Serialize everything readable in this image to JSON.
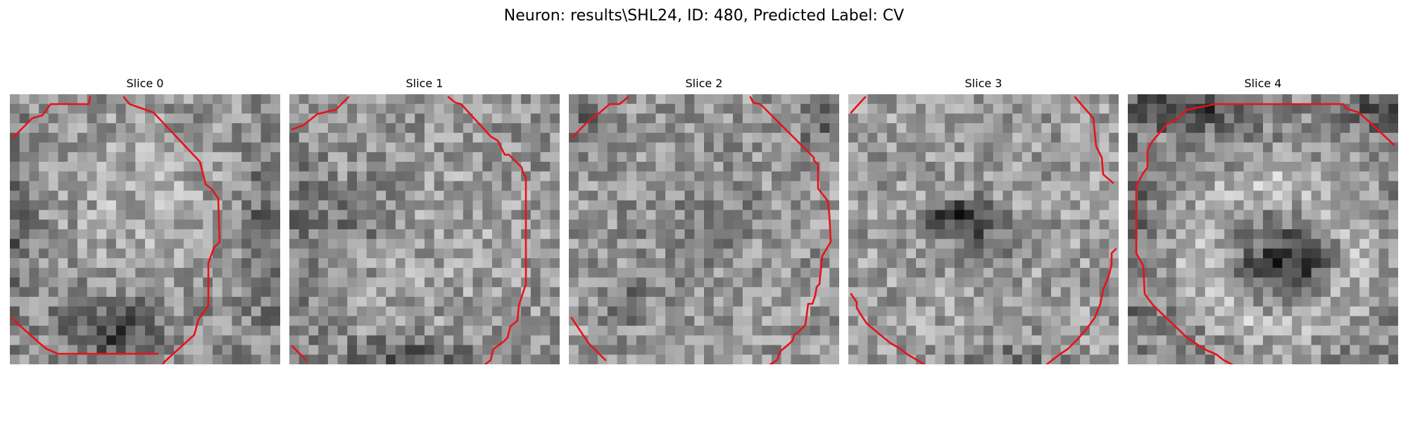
{
  "figure": {
    "title": "Neuron: results\\SHL24, ID: 480, Predicted Label: CV"
  },
  "panels": [
    {
      "title": "Slice 0"
    },
    {
      "title": "Slice 1"
    },
    {
      "title": "Slice 2"
    },
    {
      "title": "Slice 3"
    },
    {
      "title": "Slice 4"
    }
  ],
  "image": {
    "colormap": "gray",
    "grid": 28
  },
  "contour": {
    "color": "#e8121a"
  }
}
